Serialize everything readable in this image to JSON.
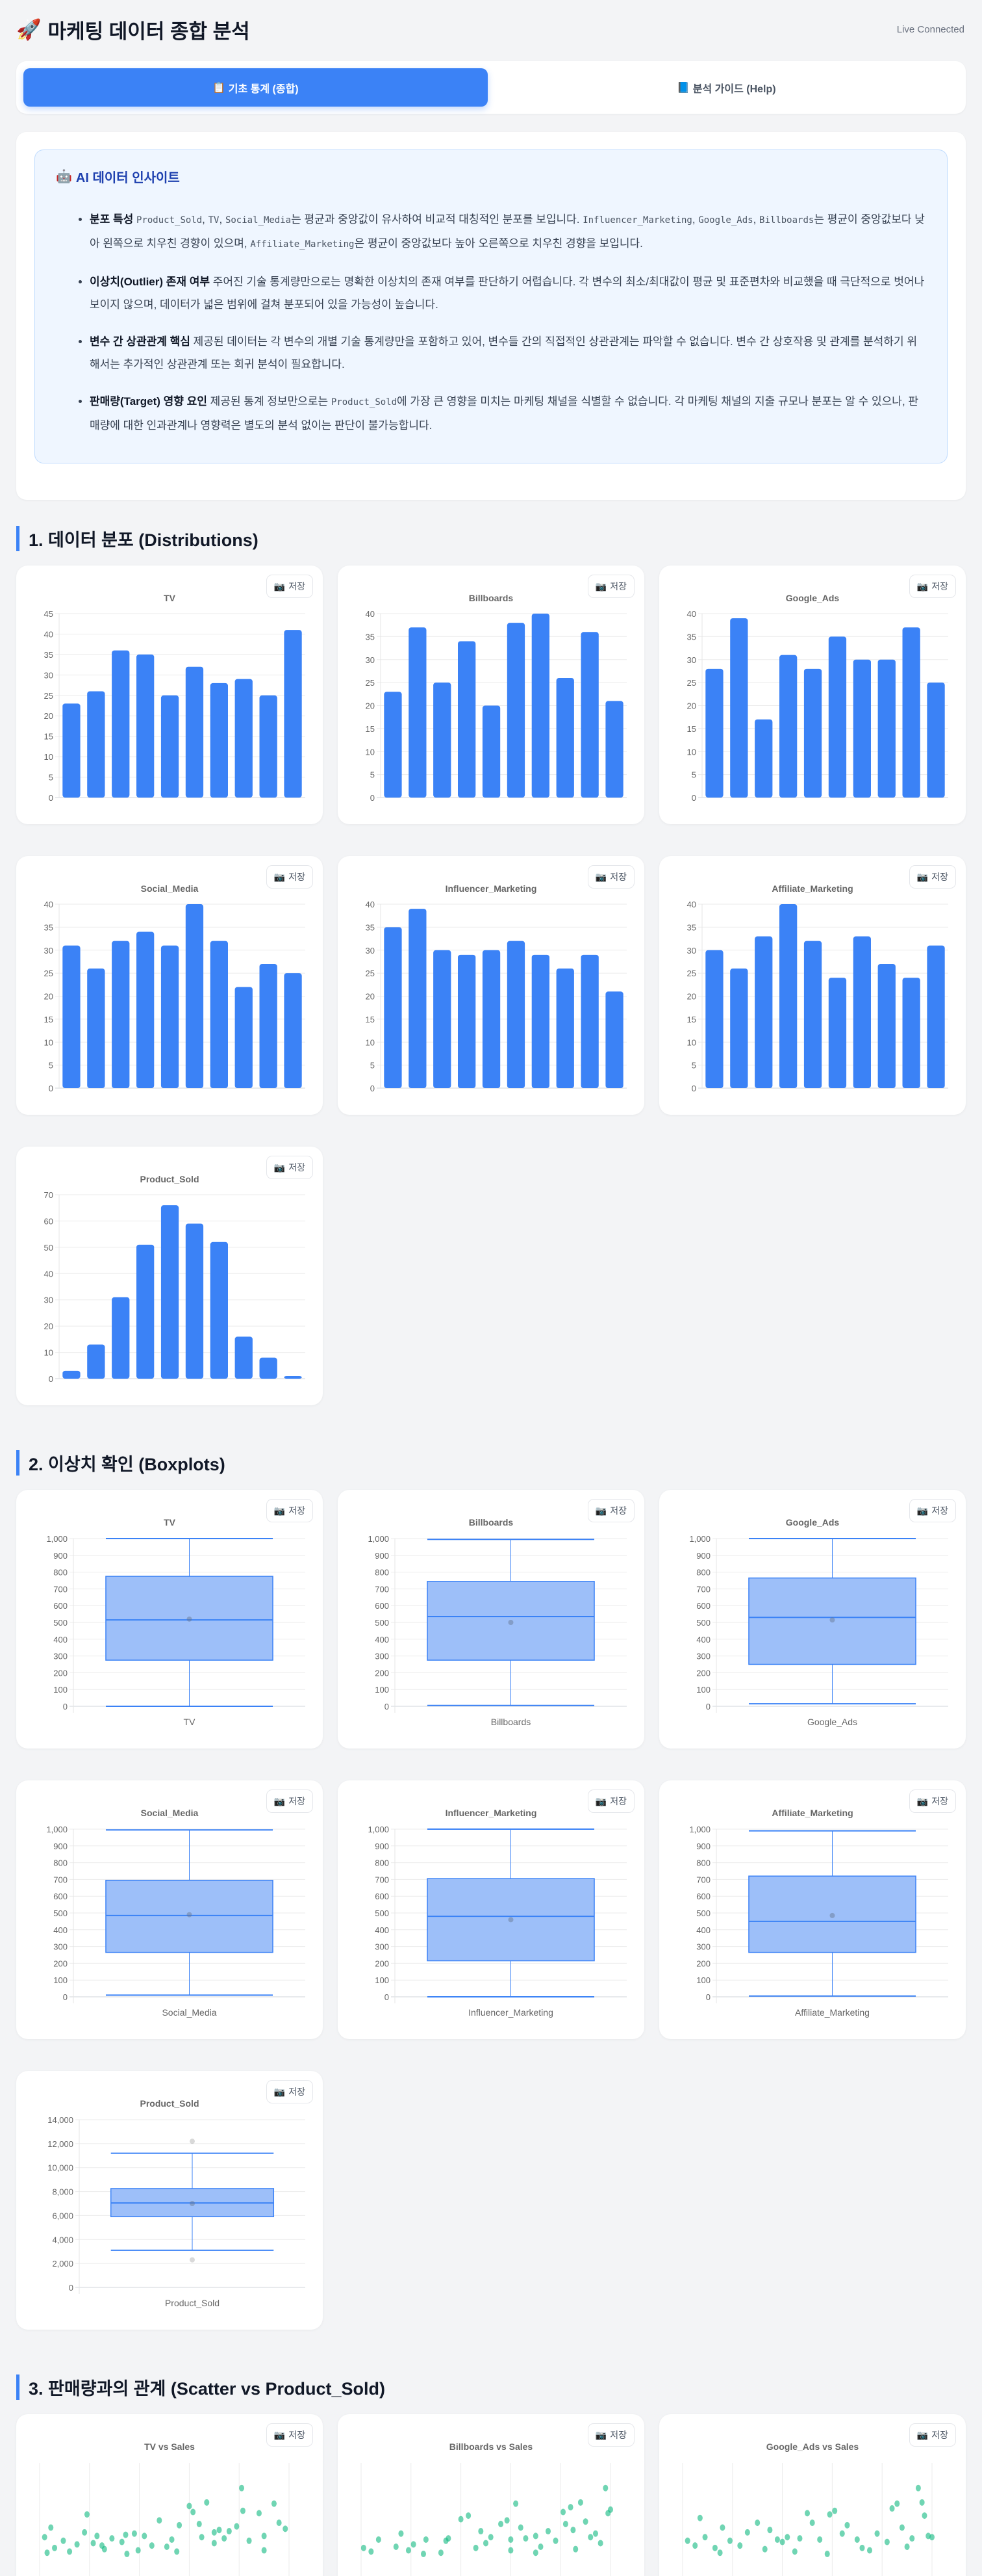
{
  "header": {
    "icon": "rocket-icon",
    "title": "마케팅 데이터 종합 분석",
    "status": "Live Connected"
  },
  "tabs": [
    {
      "icon": "clipboard-icon",
      "label": "기초 통계 (종합)",
      "active": true
    },
    {
      "icon": "book-icon",
      "label": "분석 가이드 (Help)",
      "active": false
    }
  ],
  "insight": {
    "icon": "robot-icon",
    "title": "AI 데이터 인사이트",
    "bullets": [
      {
        "label": "분포 특성",
        "segments": [
          {
            "t": "Product_Sold",
            "code": true
          },
          {
            "t": ", "
          },
          {
            "t": "TV",
            "code": true
          },
          {
            "t": ", "
          },
          {
            "t": "Social_Media",
            "code": true
          },
          {
            "t": "는 평균과 중앙값이 유사하여 비교적 대칭적인 분포를 보입니다. "
          },
          {
            "t": "Influencer_Marketing",
            "code": true
          },
          {
            "t": ", "
          },
          {
            "t": "Google_Ads",
            "code": true
          },
          {
            "t": ", "
          },
          {
            "t": "Billboards",
            "code": true
          },
          {
            "t": "는 평균이 중앙값보다 낮아 왼쪽으로 치우친 경향이 있으며, "
          },
          {
            "t": "Affiliate_Marketing",
            "code": true
          },
          {
            "t": "은 평균이 중앙값보다 높아 오른쪽으로 치우친 경향을 보입니다."
          }
        ]
      },
      {
        "label": "이상치(Outlier) 존재 여부",
        "segments": [
          {
            "t": "주어진 기술 통계량만으로는 명확한 이상치의 존재 여부를 판단하기 어렵습니다. 각 변수의 최소/최대값이 평균 및 표준편차와 비교했을 때 극단적으로 벗어나 보이지 않으며, 데이터가 넓은 범위에 걸쳐 분포되어 있을 가능성이 높습니다."
          }
        ]
      },
      {
        "label": "변수 간 상관관계 핵심",
        "segments": [
          {
            "t": "제공된 데이터는 각 변수의 개별 기술 통계량만을 포함하고 있어, 변수들 간의 직접적인 상관관계는 파악할 수 없습니다. 변수 간 상호작용 및 관계를 분석하기 위해서는 추가적인 상관관계 또는 회귀 분석이 필요합니다."
          }
        ]
      },
      {
        "label": "판매량(Target) 영향 요인",
        "segments": [
          {
            "t": "제공된 통계 정보만으로는 "
          },
          {
            "t": "Product_Sold",
            "code": true
          },
          {
            "t": "에 가장 큰 영향을 미치는 마케팅 채널을 식별할 수 없습니다. 각 마케팅 채널의 지출 규모나 분포는 알 수 있으나, 판매량에 대한 인과관계나 영향력은 별도의 분석 없이는 판단이 불가능합니다."
          }
        ]
      }
    ]
  },
  "save_label": "저장",
  "save_icon": "camera-icon",
  "sections": {
    "dist": "1. 데이터 분포 (Distributions)",
    "box": "2. 이상치 확인 (Boxplots)",
    "scatter": "3. 판매량과의 관계 (Scatter vs Product_Sold)"
  },
  "colors": {
    "accent": "#3b82f6",
    "bar": "#3b82f6",
    "box_fill": "#9dbff9",
    "scatter": "#10b981"
  },
  "chart_data": {
    "histograms": [
      {
        "type": "bar",
        "title": "TV",
        "values": [
          23,
          26,
          36,
          35,
          25,
          32,
          28,
          29,
          25,
          41
        ],
        "ylim": [
          0,
          45
        ],
        "ystep": 5
      },
      {
        "type": "bar",
        "title": "Billboards",
        "values": [
          23,
          37,
          25,
          34,
          20,
          38,
          40,
          26,
          36,
          21
        ],
        "ylim": [
          0,
          40
        ],
        "ystep": 5
      },
      {
        "type": "bar",
        "title": "Google_Ads",
        "values": [
          28,
          39,
          17,
          31,
          28,
          35,
          30,
          30,
          37,
          25
        ],
        "ylim": [
          0,
          40
        ],
        "ystep": 5
      },
      {
        "type": "bar",
        "title": "Social_Media",
        "values": [
          31,
          26,
          32,
          34,
          31,
          40,
          32,
          22,
          27,
          25
        ],
        "ylim": [
          0,
          40
        ],
        "ystep": 5
      },
      {
        "type": "bar",
        "title": "Influencer_Marketing",
        "values": [
          35,
          39,
          30,
          29,
          30,
          32,
          29,
          26,
          29,
          21
        ],
        "ylim": [
          0,
          40
        ],
        "ystep": 5
      },
      {
        "type": "bar",
        "title": "Affiliate_Marketing",
        "values": [
          30,
          26,
          33,
          40,
          32,
          24,
          33,
          27,
          24,
          31
        ],
        "ylim": [
          0,
          40
        ],
        "ystep": 5
      },
      {
        "type": "bar",
        "title": "Product_Sold",
        "values": [
          3,
          13,
          31,
          51,
          66,
          59,
          52,
          16,
          8,
          1
        ],
        "ylim": [
          0,
          70
        ],
        "ystep": 10
      }
    ],
    "boxplots": [
      {
        "type": "box",
        "title": "TV",
        "xlabel": "TV",
        "min": 0,
        "q1": 275,
        "median": 515,
        "q3": 775,
        "max": 1000,
        "mean": 520,
        "outliers": [],
        "ylim": [
          0,
          1000
        ],
        "ystep": 100
      },
      {
        "type": "box",
        "title": "Billboards",
        "xlabel": "Billboards",
        "min": 5,
        "q1": 275,
        "median": 535,
        "q3": 745,
        "max": 995,
        "mean": 500,
        "outliers": [],
        "ylim": [
          0,
          1000
        ],
        "ystep": 100
      },
      {
        "type": "box",
        "title": "Google_Ads",
        "xlabel": "Google_Ads",
        "min": 15,
        "q1": 250,
        "median": 530,
        "q3": 765,
        "max": 1000,
        "mean": 515,
        "outliers": [],
        "ylim": [
          0,
          1000
        ],
        "ystep": 100
      },
      {
        "type": "box",
        "title": "Social_Media",
        "xlabel": "Social_Media",
        "min": 10,
        "q1": 265,
        "median": 485,
        "q3": 695,
        "max": 995,
        "mean": 490,
        "outliers": [],
        "ylim": [
          0,
          1000
        ],
        "ystep": 100
      },
      {
        "type": "box",
        "title": "Influencer_Marketing",
        "xlabel": "Influencer_Marketing",
        "min": 0,
        "q1": 215,
        "median": 480,
        "q3": 705,
        "max": 1000,
        "mean": 460,
        "outliers": [],
        "ylim": [
          0,
          1000
        ],
        "ystep": 100
      },
      {
        "type": "box",
        "title": "Affiliate_Marketing",
        "xlabel": "Affiliate_Marketing",
        "min": 5,
        "q1": 265,
        "median": 450,
        "q3": 720,
        "max": 990,
        "mean": 485,
        "outliers": [],
        "ylim": [
          0,
          1000
        ],
        "ystep": 100
      },
      {
        "type": "box",
        "title": "Product_Sold",
        "xlabel": "Product_Sold",
        "min": 3100,
        "q1": 5900,
        "median": 7050,
        "q3": 8250,
        "max": 11200,
        "mean": 7000,
        "outliers": [
          12200,
          2300
        ],
        "ylim": [
          0,
          14000
        ],
        "ystep": 2000
      }
    ],
    "scatters": [
      {
        "type": "scatter",
        "title": "TV vs Sales",
        "xlim": [
          0,
          1000
        ],
        "ylim": [
          0,
          14000
        ],
        "points": [
          [
            20,
            7800
          ],
          [
            45,
            8600
          ],
          [
            60,
            6900
          ],
          [
            95,
            7500
          ],
          [
            120,
            6600
          ],
          [
            150,
            7200
          ],
          [
            180,
            8200
          ],
          [
            190,
            9700
          ],
          [
            215,
            7300
          ],
          [
            230,
            7900
          ],
          [
            260,
            6800
          ],
          [
            290,
            7700
          ],
          [
            330,
            7400
          ],
          [
            345,
            8000
          ],
          [
            380,
            8100
          ],
          [
            395,
            6700
          ],
          [
            420,
            7900
          ],
          [
            450,
            7100
          ],
          [
            480,
            9200
          ],
          [
            510,
            7000
          ],
          [
            530,
            7600
          ],
          [
            560,
            8800
          ],
          [
            600,
            10400
          ],
          [
            615,
            9900
          ],
          [
            640,
            8900
          ],
          [
            650,
            7800
          ],
          [
            670,
            10700
          ],
          [
            700,
            7300
          ],
          [
            720,
            8400
          ],
          [
            740,
            7700
          ],
          [
            760,
            8300
          ],
          [
            790,
            8700
          ],
          [
            810,
            11900
          ],
          [
            815,
            10000
          ],
          [
            840,
            7500
          ],
          [
            880,
            9800
          ],
          [
            900,
            7900
          ],
          [
            940,
            10600
          ],
          [
            960,
            9000
          ],
          [
            985,
            8500
          ],
          [
            30,
            6500
          ],
          [
            350,
            6400
          ],
          [
            550,
            6600
          ],
          [
            900,
            6700
          ],
          [
            700,
            8200
          ],
          [
            250,
            7100
          ]
        ]
      },
      {
        "type": "scatter",
        "title": "Billboards vs Sales",
        "xlim": [
          0,
          1000
        ],
        "ylim": [
          0,
          14000
        ],
        "points": [
          [
            10,
            6900
          ],
          [
            40,
            6600
          ],
          [
            70,
            7600
          ],
          [
            140,
            7000
          ],
          [
            160,
            8100
          ],
          [
            190,
            6700
          ],
          [
            210,
            7200
          ],
          [
            260,
            7600
          ],
          [
            320,
            6500
          ],
          [
            340,
            7500
          ],
          [
            350,
            7700
          ],
          [
            400,
            9300
          ],
          [
            430,
            9600
          ],
          [
            460,
            6900
          ],
          [
            480,
            8300
          ],
          [
            500,
            7300
          ],
          [
            520,
            7800
          ],
          [
            560,
            8900
          ],
          [
            585,
            9200
          ],
          [
            600,
            7600
          ],
          [
            620,
            10600
          ],
          [
            640,
            8600
          ],
          [
            660,
            7700
          ],
          [
            700,
            7900
          ],
          [
            720,
            7000
          ],
          [
            750,
            8300
          ],
          [
            780,
            7500
          ],
          [
            810,
            9900
          ],
          [
            820,
            8900
          ],
          [
            840,
            10300
          ],
          [
            850,
            8400
          ],
          [
            880,
            10700
          ],
          [
            900,
            9100
          ],
          [
            920,
            7800
          ],
          [
            940,
            8100
          ],
          [
            960,
            7300
          ],
          [
            980,
            11900
          ],
          [
            990,
            9800
          ],
          [
            1000,
            10100
          ],
          [
            860,
            6800
          ],
          [
            600,
            6700
          ],
          [
            250,
            6400
          ],
          [
            700,
            6500
          ]
        ]
      },
      {
        "type": "scatter",
        "title": "Google_Ads vs Sales",
        "xlim": [
          0,
          1000
        ],
        "ylim": [
          0,
          14000
        ],
        "points": [
          [
            20,
            7500
          ],
          [
            50,
            7100
          ],
          [
            70,
            9400
          ],
          [
            90,
            7800
          ],
          [
            130,
            6900
          ],
          [
            160,
            8600
          ],
          [
            190,
            7500
          ],
          [
            230,
            7100
          ],
          [
            260,
            8200
          ],
          [
            300,
            9000
          ],
          [
            330,
            6800
          ],
          [
            350,
            8400
          ],
          [
            380,
            7600
          ],
          [
            400,
            7400
          ],
          [
            420,
            7800
          ],
          [
            470,
            7700
          ],
          [
            500,
            9800
          ],
          [
            520,
            9000
          ],
          [
            550,
            7600
          ],
          [
            590,
            9700
          ],
          [
            610,
            10000
          ],
          [
            640,
            8100
          ],
          [
            660,
            8800
          ],
          [
            700,
            7600
          ],
          [
            720,
            6900
          ],
          [
            780,
            8100
          ],
          [
            820,
            7400
          ],
          [
            840,
            10200
          ],
          [
            860,
            10600
          ],
          [
            880,
            8600
          ],
          [
            900,
            7000
          ],
          [
            920,
            7700
          ],
          [
            945,
            11900
          ],
          [
            960,
            10700
          ],
          [
            970,
            9600
          ],
          [
            985,
            7900
          ],
          [
            1000,
            7800
          ],
          [
            150,
            6500
          ],
          [
            450,
            6600
          ],
          [
            750,
            6700
          ],
          [
            580,
            6400
          ]
        ]
      }
    ]
  }
}
